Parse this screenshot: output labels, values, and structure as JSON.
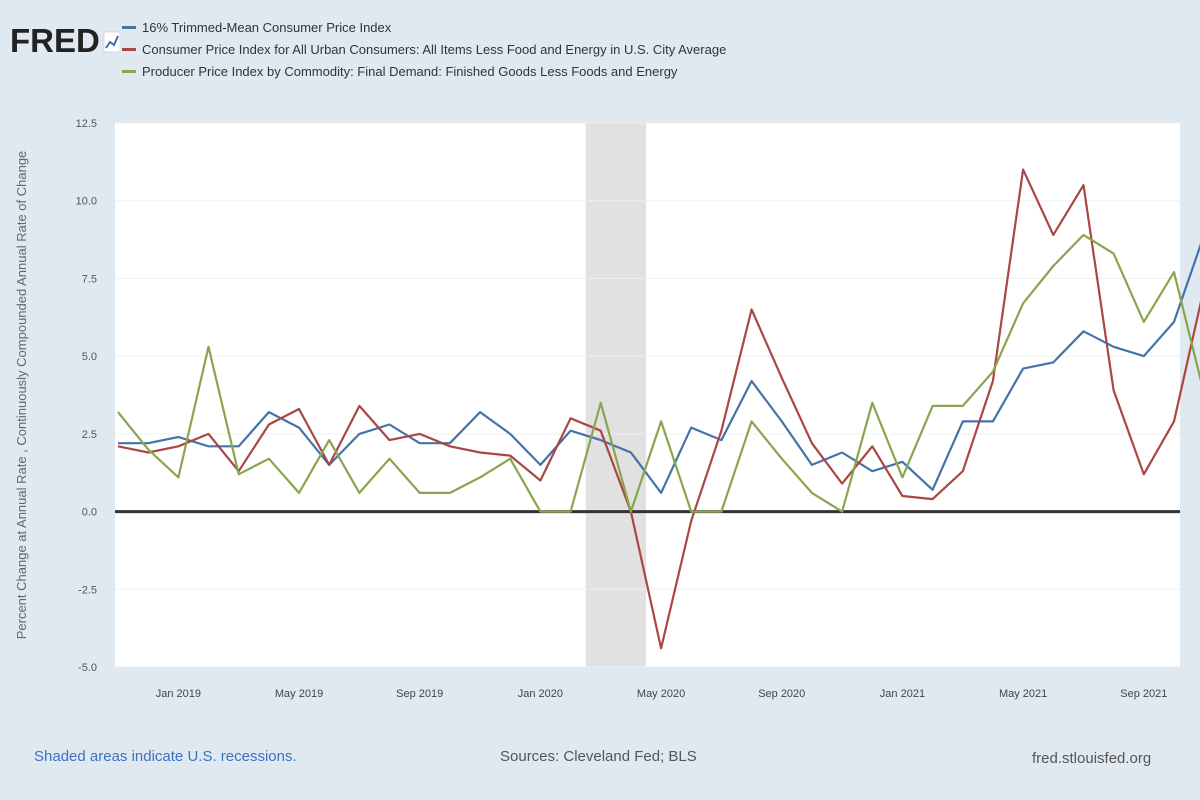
{
  "logo": {
    "text": "FRED"
  },
  "footer": {
    "note": "Shaded areas indicate U.S. recessions.",
    "sources": "Sources: Cleveland Fed; BLS",
    "site": "fred.stlouisfed.org"
  },
  "colors": {
    "blue": "#4572a7",
    "red": "#aa4643",
    "green": "#89a54e",
    "zero": "#333333",
    "recession": "#e1e1e1",
    "background": "#e1e9f0",
    "plot": "#ffffff"
  },
  "chart_data": {
    "type": "line",
    "title": "",
    "xlabel": "",
    "ylabel": "Percent Change at Annual Rate , Continuously Compounded Annual Rate of Change",
    "ylim": [
      -5,
      12.5
    ],
    "yticks": [
      "12.5",
      "10.0",
      "7.5",
      "5.0",
      "2.5",
      "0.0",
      "-2.5",
      "-5.0"
    ],
    "ytick_values": [
      12.5,
      10,
      7.5,
      5,
      2.5,
      0,
      -2.5,
      -5
    ],
    "xticks": [
      {
        "label": "Jan 2019",
        "index": 2
      },
      {
        "label": "May 2019",
        "index": 6
      },
      {
        "label": "Sep 2019",
        "index": 10
      },
      {
        "label": "Jan 2020",
        "index": 14
      },
      {
        "label": "May 2020",
        "index": 18
      },
      {
        "label": "Sep 2020",
        "index": 22
      },
      {
        "label": "Jan 2021",
        "index": 26
      },
      {
        "label": "May 2021",
        "index": 30
      },
      {
        "label": "Sep 2021",
        "index": 34
      }
    ],
    "x_range": [
      -0.1,
      35.2
    ],
    "recession": {
      "start_index": 15.5,
      "end_index": 17.5
    },
    "series": [
      {
        "name": "16% Trimmed-Mean Consumer Price Index",
        "color": "#4572a7",
        "values": [
          2.2,
          2.2,
          2.4,
          2.1,
          2.1,
          3.2,
          2.7,
          1.5,
          2.5,
          2.8,
          2.2,
          2.2,
          3.2,
          2.5,
          1.5,
          2.6,
          2.3,
          1.9,
          0.6,
          2.7,
          2.3,
          4.2,
          2.9,
          1.5,
          1.9,
          1.3,
          1.6,
          0.7,
          2.9,
          2.9,
          4.6,
          4.8,
          5.8,
          5.3,
          5.0,
          6.1,
          8.9
        ]
      },
      {
        "name": "Consumer Price Index for All Urban Consumers: All Items Less Food and Energy in U.S. City Average",
        "color": "#aa4643",
        "values": [
          2.1,
          1.9,
          2.1,
          2.5,
          1.3,
          2.8,
          3.3,
          1.5,
          3.4,
          2.3,
          2.5,
          2.1,
          1.9,
          1.8,
          1.0,
          3.0,
          2.6,
          0.0,
          -4.4,
          -0.3,
          2.6,
          6.5,
          4.3,
          2.2,
          0.9,
          2.1,
          0.5,
          0.4,
          1.3,
          4.2,
          11.0,
          8.9,
          10.5,
          3.9,
          1.2,
          2.9,
          7.2
        ]
      },
      {
        "name": "Producer Price Index by Commodity: Final Demand: Finished Goods Less Foods and Energy",
        "color": "#89a54e",
        "values": [
          3.2,
          2.0,
          1.1,
          5.3,
          1.2,
          1.7,
          0.6,
          2.3,
          0.6,
          1.7,
          0.6,
          0.6,
          1.1,
          1.7,
          0.0,
          0.0,
          3.5,
          0.0,
          2.9,
          0.0,
          0.0,
          2.9,
          1.7,
          0.6,
          0.0,
          3.5,
          1.1,
          3.4,
          3.4,
          4.5,
          6.7,
          7.9,
          8.9,
          8.3,
          6.1,
          7.7,
          3.8
        ]
      }
    ]
  }
}
